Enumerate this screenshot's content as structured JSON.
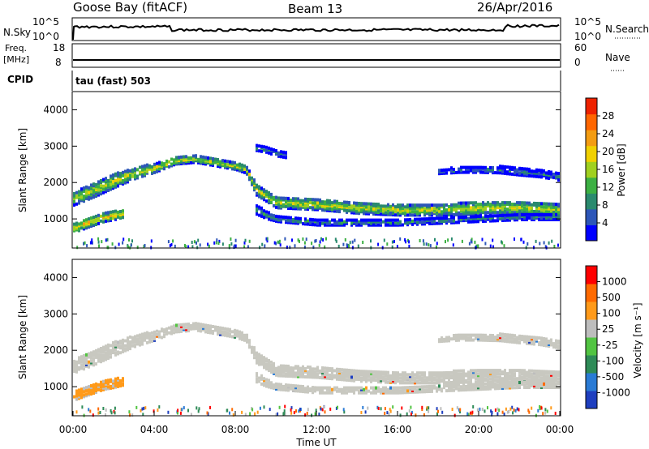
{
  "header": {
    "station": "Goose Bay (fitACF)",
    "beam": "Beam 13",
    "date": "26/Apr/2016"
  },
  "aux_panels": {
    "nsky_label": "N.Sky",
    "nsky_ticks": [
      "10^5",
      "10^0"
    ],
    "nsearch_label": "N.Search",
    "nsearch_ticks": [
      "10^5",
      "10^0"
    ],
    "freq_label": "Freq.",
    "freq_unit": "[MHz]",
    "freq_ticks": [
      "18",
      "8"
    ],
    "nave_label": "Nave",
    "nave_ticks": [
      "60",
      "0"
    ],
    "cpid_label": "CPID",
    "cpid_text": "tau (fast) 503"
  },
  "chart_data": [
    {
      "type": "heatmap",
      "name": "power",
      "ylabel": "Slant Range [km]",
      "ylim": [
        200,
        4500
      ],
      "yticks": [
        "4000",
        "3000",
        "2000",
        "1000"
      ],
      "colorbar": {
        "label": "Power [dB]",
        "ticks": [
          "28",
          "24",
          "20",
          "16",
          "12",
          "8",
          "4"
        ],
        "range": [
          0,
          30
        ],
        "colors": [
          "#0000ff",
          "#2d56b8",
          "#2a8a6e",
          "#3cb043",
          "#a0d020",
          "#f0d000",
          "#f39c12",
          "#ff6600",
          "#ee2200"
        ]
      },
      "bands": [
        {
          "x": [
            0,
            1,
            2,
            3,
            4,
            5,
            6,
            7,
            8,
            8.5,
            9,
            10,
            12,
            14,
            16,
            18,
            20,
            22,
            24
          ],
          "center": [
            1600,
            1850,
            2100,
            2300,
            2450,
            2650,
            2700,
            2600,
            2500,
            2400,
            1850,
            1500,
            1450,
            1350,
            1300,
            1300,
            1350,
            1350,
            1300
          ],
          "width": [
            350,
            400,
            380,
            300,
            250,
            200,
            200,
            200,
            200,
            200,
            300,
            300,
            300,
            300,
            300,
            300,
            350,
            350,
            350
          ],
          "level": 17
        },
        {
          "x": [
            0,
            0.5,
            1,
            1.5,
            2,
            2.5
          ],
          "center": [
            800,
            900,
            1000,
            1100,
            1150,
            1200
          ],
          "width": [
            250,
            250,
            250,
            250,
            250,
            200
          ],
          "level": 19
        },
        {
          "x": [
            9,
            9.5,
            10,
            11,
            12,
            14,
            16,
            18,
            20,
            22,
            24
          ],
          "center": [
            1300,
            1150,
            1050,
            1000,
            950,
            950,
            950,
            1000,
            1050,
            1100,
            1100
          ],
          "width": [
            250,
            200,
            150,
            150,
            150,
            150,
            150,
            150,
            150,
            150,
            150
          ],
          "level": 10
        },
        {
          "x": [
            18,
            19,
            20,
            21,
            22,
            23,
            24
          ],
          "center": [
            2350,
            2400,
            2400,
            2400,
            2350,
            2300,
            2200
          ],
          "width": [
            120,
            150,
            150,
            180,
            200,
            200,
            200
          ],
          "level": 8
        },
        {
          "x": [
            9,
            9.5,
            10,
            10.5
          ],
          "center": [
            3000,
            2950,
            2850,
            2800
          ],
          "width": [
            150,
            150,
            150,
            150
          ],
          "level": 9
        }
      ]
    },
    {
      "type": "heatmap",
      "name": "velocity",
      "ylabel": "Slant Range [km]",
      "xlabel": "Time UT",
      "ylim": [
        200,
        4500
      ],
      "yticks": [
        "4000",
        "3000",
        "2000",
        "1000"
      ],
      "xticks": [
        "00:00",
        "04:00",
        "08:00",
        "12:00",
        "16:00",
        "20:00",
        "00:00"
      ],
      "colorbar": {
        "label": "Velocity [m s⁻¹]",
        "ticks": [
          "1000",
          "500",
          "100",
          "25",
          "-25",
          "-100",
          "-500",
          "-1000"
        ],
        "colors": [
          "#1f3fbf",
          "#2a7bd5",
          "#2e8b57",
          "#52c442",
          "#bdbdbd",
          "#ff9a1a",
          "#ff6a00",
          "#ff0000"
        ]
      },
      "bands": [
        {
          "x": [
            0,
            1,
            2,
            3,
            4,
            5,
            6,
            7,
            8,
            8.5,
            9,
            10,
            12,
            14,
            16,
            18,
            20,
            22,
            24
          ],
          "center": [
            1600,
            1850,
            2100,
            2300,
            2450,
            2650,
            2700,
            2600,
            2500,
            2400,
            1850,
            1500,
            1450,
            1350,
            1300,
            1300,
            1350,
            1350,
            1300
          ],
          "width": [
            350,
            400,
            380,
            300,
            250,
            200,
            200,
            200,
            200,
            200,
            300,
            300,
            300,
            300,
            300,
            300,
            350,
            350,
            350
          ],
          "level": "gray"
        },
        {
          "x": [
            0,
            0.5,
            1,
            1.5,
            2,
            2.5
          ],
          "center": [
            800,
            900,
            1000,
            1100,
            1150,
            1200
          ],
          "width": [
            250,
            250,
            250,
            250,
            250,
            200
          ],
          "level": "orange"
        },
        {
          "x": [
            9,
            9.5,
            10,
            11,
            12,
            14,
            16,
            18,
            20,
            22,
            24
          ],
          "center": [
            1300,
            1150,
            1050,
            1000,
            950,
            950,
            950,
            1000,
            1050,
            1100,
            1100
          ],
          "width": [
            250,
            200,
            150,
            150,
            150,
            150,
            150,
            150,
            150,
            150,
            150
          ],
          "level": "gray"
        },
        {
          "x": [
            18,
            19,
            20,
            21,
            22,
            23,
            24
          ],
          "center": [
            2350,
            2400,
            2400,
            2400,
            2350,
            2300,
            2200
          ],
          "width": [
            120,
            150,
            150,
            180,
            200,
            200,
            200
          ],
          "level": "gray"
        }
      ]
    }
  ]
}
